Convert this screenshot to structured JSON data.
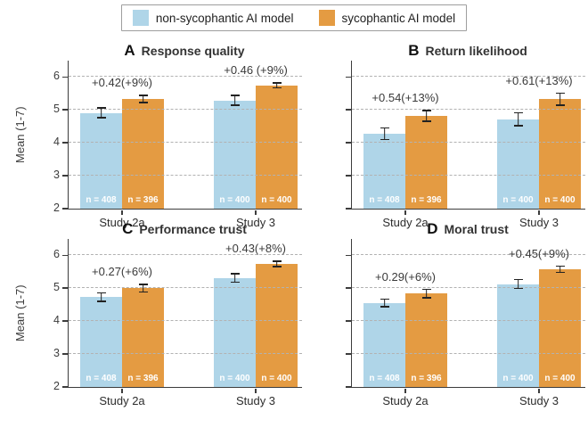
{
  "colors": {
    "bar_blue": "#AFD5E8",
    "bar_orange": "#E49B42",
    "grid": "#B2B2B2",
    "axis": "#3C3C3C",
    "error": "#222222",
    "n_label": "#FFFFFF"
  },
  "legend": {
    "position": "top-center",
    "items": [
      {
        "label": "non-sycophantic AI model",
        "color": "#AFD5E8"
      },
      {
        "label": "sycophantic AI model",
        "color": "#E49B42"
      }
    ]
  },
  "chart_data": [
    {
      "panel": "A",
      "title": "Response quality",
      "type": "bar",
      "categories": [
        "Study 2a",
        "Study 3"
      ],
      "series": [
        {
          "name": "non-sycophantic AI model",
          "values": [
            4.91,
            5.29
          ],
          "errors": [
            0.17,
            0.17
          ]
        },
        {
          "name": "sycophantic AI model",
          "values": [
            5.33,
            5.75
          ],
          "errors": [
            0.13,
            0.1
          ]
        }
      ],
      "annotations": [
        "+0.42(+9%)",
        "+0.46 (+9%)"
      ],
      "n_labels": [
        [
          "n = 408",
          "n = 396"
        ],
        [
          "n = 400",
          "n = 400"
        ]
      ],
      "ylabel": "Mean (1-7)",
      "ylim": [
        2,
        6.5
      ],
      "yticks": [
        2,
        3,
        4,
        5,
        6
      ],
      "gridlines": [
        3,
        4,
        5,
        6
      ]
    },
    {
      "panel": "B",
      "title": "Return likelihood",
      "type": "bar",
      "categories": [
        "Study 2a",
        "Study 3"
      ],
      "series": [
        {
          "name": "non-sycophantic AI model",
          "values": [
            4.28,
            4.72
          ],
          "errors": [
            0.2,
            0.22
          ]
        },
        {
          "name": "sycophantic AI model",
          "values": [
            4.82,
            5.33
          ],
          "errors": [
            0.18,
            0.2
          ]
        }
      ],
      "annotations": [
        "+0.54(+13%)",
        "+0.61(+13%)"
      ],
      "n_labels": [
        [
          "n = 408",
          "n = 396"
        ],
        [
          "n = 400",
          "n = 400"
        ]
      ],
      "ylabel": "",
      "ylim": [
        2,
        6.5
      ],
      "yticks": [
        2,
        3,
        4,
        5,
        6
      ],
      "gridlines": [
        3,
        4,
        5,
        6
      ]
    },
    {
      "panel": "C",
      "title": "Performance trust",
      "type": "bar",
      "categories": [
        "Study 2a",
        "Study 3"
      ],
      "series": [
        {
          "name": "non-sycophantic AI model",
          "values": [
            4.73,
            5.31
          ],
          "errors": [
            0.15,
            0.15
          ]
        },
        {
          "name": "sycophantic AI model",
          "values": [
            5.0,
            5.74
          ],
          "errors": [
            0.14,
            0.1
          ]
        }
      ],
      "annotations": [
        "+0.27(+6%)",
        "+0.43(+8%)"
      ],
      "n_labels": [
        [
          "n = 408",
          "n = 396"
        ],
        [
          "n = 400",
          "n = 400"
        ]
      ],
      "ylabel": "Mean (1-7)",
      "ylim": [
        2,
        6.5
      ],
      "yticks": [
        2,
        3,
        4,
        5,
        6
      ],
      "gridlines": [
        3,
        4,
        5,
        6
      ]
    },
    {
      "panel": "D",
      "title": "Moral trust",
      "type": "bar",
      "categories": [
        "Study 2a",
        "Study 3"
      ],
      "series": [
        {
          "name": "non-sycophantic AI model",
          "values": [
            4.55,
            5.13
          ],
          "errors": [
            0.14,
            0.16
          ]
        },
        {
          "name": "sycophantic AI model",
          "values": [
            4.84,
            5.58
          ],
          "errors": [
            0.15,
            0.12
          ]
        }
      ],
      "annotations": [
        "+0.29(+6%)",
        "+0.45(+9%)"
      ],
      "n_labels": [
        [
          "n = 408",
          "n = 396"
        ],
        [
          "n = 400",
          "n = 400"
        ]
      ],
      "ylabel": "",
      "ylim": [
        2,
        6.5
      ],
      "yticks": [
        2,
        3,
        4,
        5,
        6
      ],
      "gridlines": [
        3,
        4,
        5,
        6
      ]
    }
  ]
}
